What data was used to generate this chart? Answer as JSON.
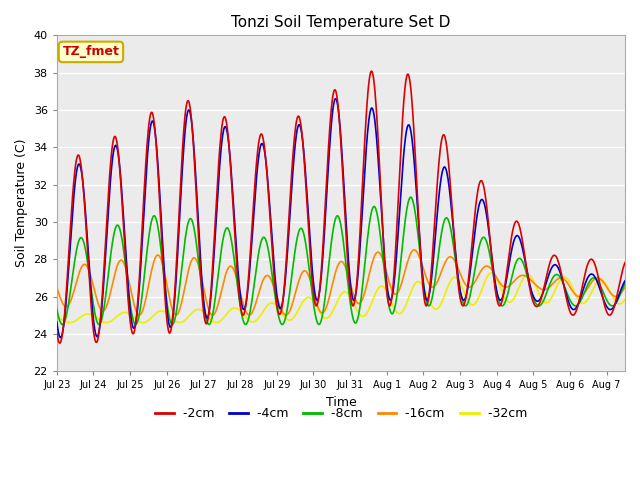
{
  "title": "Tonzi Soil Temperature Set D",
  "xlabel": "Time",
  "ylabel": "Soil Temperature (C)",
  "ylim": [
    22,
    40
  ],
  "yticks": [
    22,
    24,
    26,
    28,
    30,
    32,
    34,
    36,
    38,
    40
  ],
  "background_color": "#e8e8e8",
  "plot_bg_color": "#ebebeb",
  "line_colors": {
    "-2cm": "#dd0000",
    "-4cm": "#0000cc",
    "-8cm": "#00bb00",
    "-16cm": "#ff8800",
    "-32cm": "#eeee00"
  },
  "annotation_text": "TZ_fmet",
  "annotation_bg": "#ffffcc",
  "annotation_border": "#ccaa00",
  "annotation_text_color": "#cc0000",
  "day_labels": [
    "Jul 23",
    "Jul 24",
    "Jul 25",
    "Jul 26",
    "Jul 27",
    "Jul 28",
    "Jul 29",
    "Jul 30",
    "Jul 31",
    "Aug 1",
    "Aug 2",
    "Aug 3",
    "Aug 4",
    "Aug 5",
    "Aug 6",
    "Aug 7"
  ],
  "n_days": 15.5,
  "pts_per_day": 96
}
